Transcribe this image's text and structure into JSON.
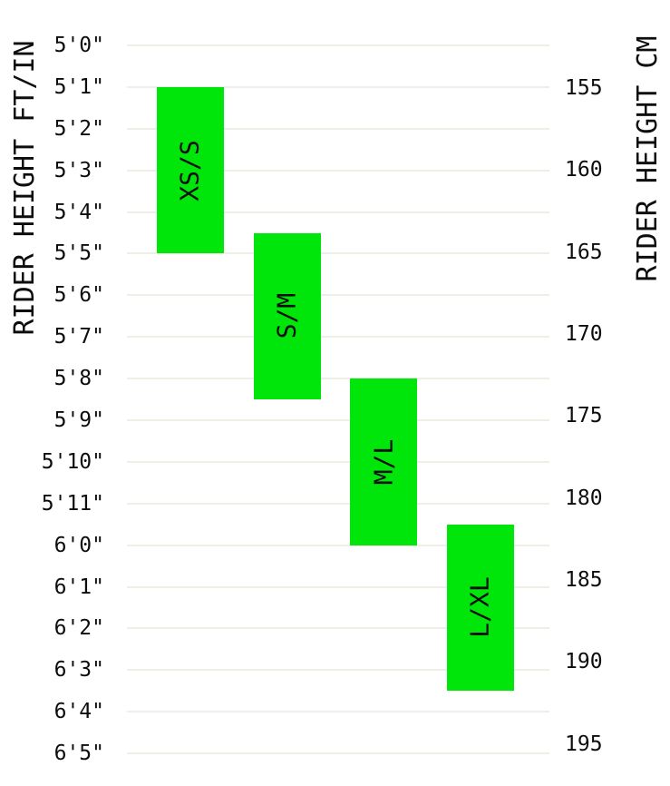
{
  "chart_data": {
    "type": "bar",
    "subtype": "vertical-range-columns",
    "title": "",
    "grid": true,
    "bar_color": "#00e60a",
    "grid_color": "#f0eee7",
    "text_color": "#0d0d0d",
    "left_axis": {
      "label": "RIDER HEIGHT FT/IN",
      "ticks": [
        "5'0\"",
        "5'1\"",
        "5'2\"",
        "5'3\"",
        "5'4\"",
        "5'5\"",
        "5'6\"",
        "5'7\"",
        "5'8\"",
        "5'9\"",
        "5'10\"",
        "5'11\"",
        "6'0\"",
        "6'1\"",
        "6'2\"",
        "6'3\"",
        "6'4\"",
        "6'5\""
      ],
      "range_in": [
        60,
        77
      ]
    },
    "right_axis": {
      "label": "RIDER HEIGHT CM",
      "ticks": [
        155,
        160,
        165,
        170,
        175,
        180,
        185,
        190,
        195
      ]
    },
    "series": [
      {
        "label": "XS/S",
        "min_in": 61,
        "max_in": 65,
        "min_ftin": "5'1\"",
        "max_ftin": "5'5\"",
        "min_cm": 155,
        "max_cm": 165
      },
      {
        "label": "S/M",
        "min_in": 64.5,
        "max_in": 68.5,
        "min_ftin": "5'4.5\"",
        "max_ftin": "5'8.5\"",
        "min_cm": 164,
        "max_cm": 174
      },
      {
        "label": "M/L",
        "min_in": 68,
        "max_in": 72,
        "min_ftin": "5'8\"",
        "max_ftin": "6'0\"",
        "min_cm": 173,
        "max_cm": 183
      },
      {
        "label": "L/XL",
        "min_in": 71.5,
        "max_in": 75.5,
        "min_ftin": "5'11.5\"",
        "max_ftin": "6'3.5\"",
        "min_cm": 182,
        "max_cm": 192
      }
    ]
  }
}
